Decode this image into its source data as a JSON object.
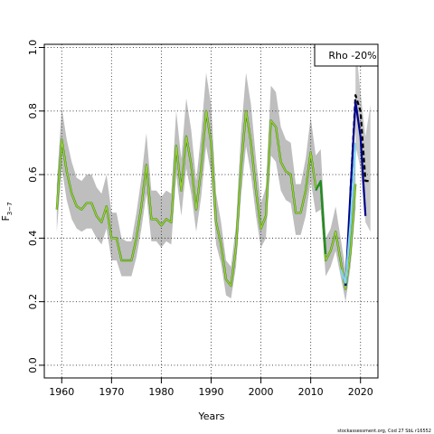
{
  "chart_data": {
    "type": "line",
    "xlabel": "Years",
    "ylabel": "F",
    "ylabel_subscript": "3−7",
    "legend": "Rho -20%",
    "footer": "stockassessment.org, Cod 27 SbL r16552",
    "xlim": [
      1956.5,
      2023.5
    ],
    "ylim": [
      -0.04,
      1.01
    ],
    "xticks": [
      1960,
      1970,
      1980,
      1990,
      2000,
      2010,
      2020
    ],
    "yticks": [
      0.0,
      0.2,
      0.4,
      0.6,
      0.8,
      1.0
    ],
    "grid": true,
    "colors": {
      "band": "#bebebe",
      "base_line": "#006400",
      "rho_line": "#9acd32",
      "r1": "#00008b",
      "r2": "#7fd4f0",
      "r3": "#000000"
    },
    "base": {
      "x": [
        1959,
        1960,
        1961,
        1962,
        1963,
        1964,
        1965,
        1966,
        1967,
        1968,
        1969,
        1970,
        1971,
        1972,
        1973,
        1974,
        1975,
        1976,
        1977,
        1978,
        1979,
        1980,
        1981,
        1982,
        1983,
        1984,
        1985,
        1986,
        1987,
        1988,
        1989,
        1990,
        1991,
        1992,
        1993,
        1994,
        1995,
        1996,
        1997,
        1998,
        1999,
        2000,
        2001,
        2002,
        2003,
        2004,
        2005,
        2006,
        2007,
        2008,
        2009,
        2010,
        2011,
        2012,
        2013,
        2014,
        2015,
        2016,
        2017,
        2018,
        2019
      ],
      "y": [
        0.49,
        0.71,
        0.61,
        0.54,
        0.5,
        0.49,
        0.51,
        0.51,
        0.47,
        0.45,
        0.5,
        0.4,
        0.4,
        0.33,
        0.33,
        0.33,
        0.4,
        0.5,
        0.63,
        0.46,
        0.46,
        0.44,
        0.46,
        0.45,
        0.69,
        0.55,
        0.72,
        0.63,
        0.49,
        0.62,
        0.8,
        0.7,
        0.45,
        0.38,
        0.27,
        0.25,
        0.37,
        0.62,
        0.8,
        0.7,
        0.55,
        0.43,
        0.47,
        0.77,
        0.75,
        0.64,
        0.61,
        0.6,
        0.48,
        0.48,
        0.55,
        0.67,
        0.56,
        0.57,
        0.33,
        0.36,
        0.42,
        0.33,
        0.24,
        0.36,
        0.57
      ],
      "lower": [
        0.42,
        0.62,
        0.52,
        0.46,
        0.43,
        0.42,
        0.43,
        0.43,
        0.4,
        0.38,
        0.43,
        0.33,
        0.33,
        0.28,
        0.28,
        0.28,
        0.34,
        0.43,
        0.54,
        0.39,
        0.39,
        0.37,
        0.39,
        0.38,
        0.6,
        0.47,
        0.62,
        0.54,
        0.42,
        0.53,
        0.69,
        0.6,
        0.38,
        0.32,
        0.22,
        0.21,
        0.31,
        0.53,
        0.69,
        0.6,
        0.47,
        0.37,
        0.4,
        0.66,
        0.64,
        0.55,
        0.52,
        0.51,
        0.41,
        0.41,
        0.47,
        0.58,
        0.48,
        0.49,
        0.28,
        0.31,
        0.36,
        0.28,
        0.2,
        0.31,
        0.49
      ],
      "upper": [
        0.57,
        0.81,
        0.71,
        0.64,
        0.59,
        0.58,
        0.6,
        0.6,
        0.56,
        0.54,
        0.6,
        0.48,
        0.48,
        0.4,
        0.39,
        0.39,
        0.48,
        0.59,
        0.73,
        0.55,
        0.55,
        0.53,
        0.55,
        0.54,
        0.8,
        0.65,
        0.84,
        0.74,
        0.58,
        0.73,
        0.92,
        0.82,
        0.54,
        0.45,
        0.33,
        0.31,
        0.44,
        0.73,
        0.92,
        0.82,
        0.65,
        0.51,
        0.56,
        0.88,
        0.86,
        0.75,
        0.71,
        0.7,
        0.57,
        0.57,
        0.65,
        0.78,
        0.66,
        0.68,
        0.4,
        0.43,
        0.5,
        0.4,
        0.3,
        0.43,
        0.69
      ]
    },
    "rho_series": [
      {
        "x": [
          2018,
          2019,
          2020,
          2021,
          2022
        ],
        "y": [
          0.55,
          0.85,
          0.8,
          0.58,
          0.58
        ],
        "color": "#000000",
        "dashed": true
      },
      {
        "x": [
          2017,
          2018,
          2019,
          2020,
          2021
        ],
        "y": [
          0.25,
          0.55,
          0.83,
          0.72,
          0.47
        ],
        "color": "#00008b",
        "dashed": false
      },
      {
        "x": [
          2016,
          2017,
          2018,
          2019
        ],
        "y": [
          0.3,
          0.26,
          0.45,
          0.7
        ],
        "color": "#7fd4f0",
        "dashed": false
      },
      {
        "x": [
          2011,
          2012,
          2013
        ],
        "y": [
          0.55,
          0.58,
          0.35
        ],
        "color": "#228b22",
        "dashed": false
      }
    ],
    "rho_upper_band": {
      "x": [
        2019,
        2020,
        2021,
        2022
      ],
      "lower": [
        0.69,
        0.62,
        0.45,
        0.42
      ],
      "upper": [
        1.01,
        0.86,
        0.72,
        0.82
      ]
    }
  }
}
